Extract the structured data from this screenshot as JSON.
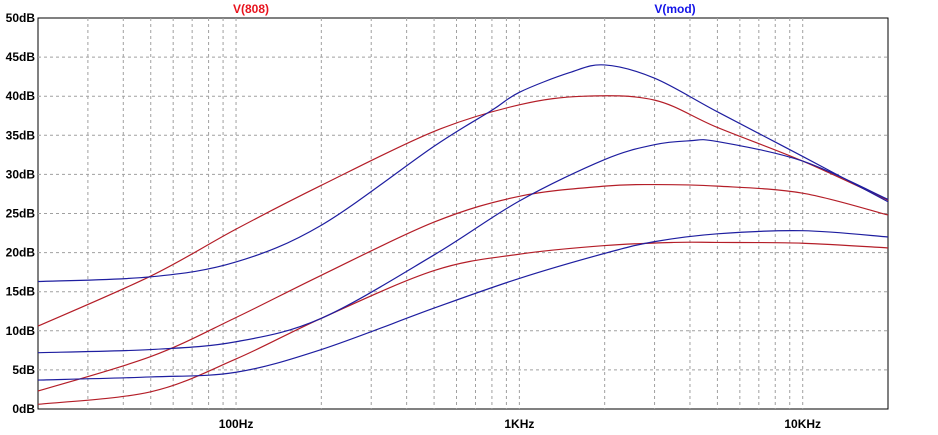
{
  "chart_data": {
    "type": "line",
    "title": "",
    "xlabel": "",
    "ylabel": "",
    "x_scale": "log",
    "xlim": [
      20,
      20000
    ],
    "ylim": [
      0,
      50
    ],
    "grid": true,
    "grid_style": "dashed",
    "legend_position": "top",
    "y_ticks": [
      "0dB",
      "5dB",
      "10dB",
      "15dB",
      "20dB",
      "25dB",
      "30dB",
      "35dB",
      "40dB",
      "45dB",
      "50dB"
    ],
    "x_ticks": [
      "100Hz",
      "1KHz",
      "10KHz"
    ],
    "legend": [
      {
        "label": "V(808)",
        "color": "#e8141e"
      },
      {
        "label": "V(mod)",
        "color": "#1414e8"
      }
    ],
    "series": [
      {
        "group": "V(808)",
        "color": "#b41e28",
        "x": [
          20,
          50,
          100,
          200,
          500,
          1000,
          1700,
          3000,
          5000,
          10000,
          20000
        ],
        "y": [
          10.6,
          17.0,
          23.0,
          28.6,
          35.5,
          38.9,
          40.0,
          39.5,
          36.0,
          31.7,
          26.7
        ]
      },
      {
        "group": "V(808)",
        "color": "#b41e28",
        "x": [
          20,
          50,
          100,
          200,
          500,
          1000,
          2000,
          3000,
          5000,
          10000,
          20000
        ],
        "y": [
          2.3,
          6.7,
          11.7,
          17.1,
          23.9,
          27.2,
          28.5,
          28.7,
          28.5,
          27.6,
          24.8
        ]
      },
      {
        "group": "V(808)",
        "color": "#b41e28",
        "x": [
          20,
          50,
          100,
          200,
          500,
          1000,
          2000,
          3500,
          5000,
          10000,
          20000
        ],
        "y": [
          0.6,
          2.2,
          6.4,
          11.6,
          17.7,
          19.8,
          20.9,
          21.3,
          21.3,
          21.2,
          20.6
        ]
      },
      {
        "group": "V(mod)",
        "color": "#1e1ea0",
        "x": [
          20,
          50,
          100,
          200,
          500,
          800,
          1000,
          1500,
          2000,
          3000,
          5000,
          10000,
          20000
        ],
        "y": [
          16.3,
          16.9,
          18.8,
          23.5,
          33.6,
          38.2,
          40.5,
          43.0,
          44.0,
          42.3,
          38.0,
          32.3,
          26.5
        ]
      },
      {
        "group": "V(mod)",
        "color": "#1e1ea0",
        "x": [
          20,
          50,
          100,
          200,
          500,
          1000,
          2000,
          3000,
          4000,
          5000,
          10000,
          20000
        ],
        "y": [
          7.2,
          7.6,
          8.6,
          11.6,
          19.7,
          26.6,
          31.9,
          33.8,
          34.3,
          34.2,
          31.7,
          26.8
        ]
      },
      {
        "group": "V(mod)",
        "color": "#1e1ea0",
        "x": [
          20,
          50,
          100,
          200,
          500,
          1000,
          2000,
          3000,
          5000,
          10000,
          20000
        ],
        "y": [
          3.7,
          4.1,
          4.7,
          7.6,
          12.9,
          16.7,
          19.9,
          21.4,
          22.4,
          22.8,
          22.0
        ]
      }
    ]
  }
}
